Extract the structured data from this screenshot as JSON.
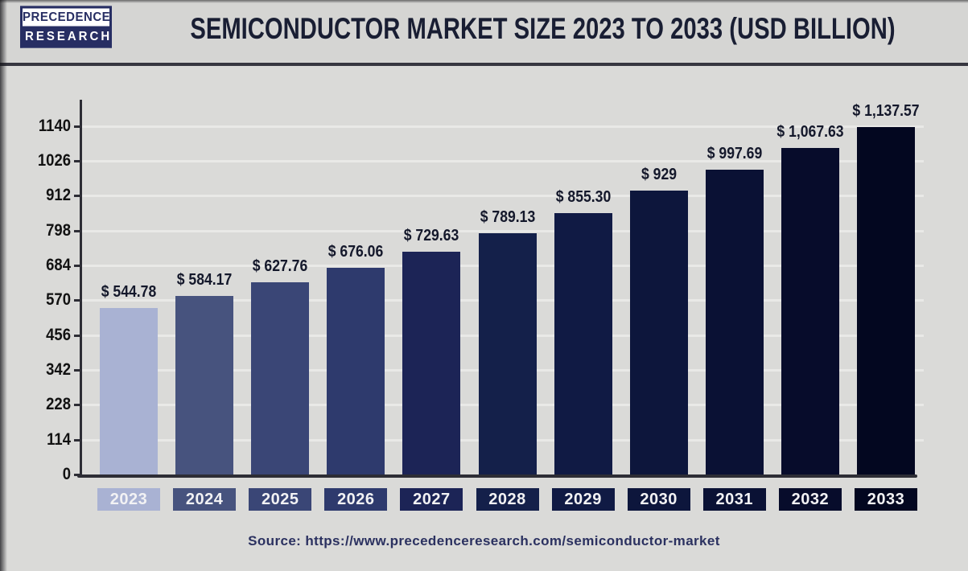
{
  "header": {
    "logo": {
      "line1": "PRECEDENCE",
      "line2": "RESEARCH"
    },
    "title": "SEMICONDUCTOR MARKET SIZE 2023 TO 2033 (USD BILLION)"
  },
  "chart_data": {
    "type": "bar",
    "title": "Semiconductor Market Size 2023 to 2033 (USD Billion)",
    "categories": [
      "2023",
      "2024",
      "2025",
      "2026",
      "2027",
      "2028",
      "2029",
      "2030",
      "2031",
      "2032",
      "2033"
    ],
    "values": [
      544.78,
      584.17,
      627.76,
      676.06,
      729.63,
      789.13,
      855.3,
      929,
      997.69,
      1067.63,
      1137.57
    ],
    "value_labels": [
      "$ 544.78",
      "$ 584.17",
      "$ 627.76",
      "$ 676.06",
      "$ 729.63",
      "$ 789.13",
      "$ 855.30",
      "$ 929",
      "$ 997.69",
      "$ 1,067.63",
      "$ 1,137.57"
    ],
    "bar_colors": [
      "#a9b2d3",
      "#47537e",
      "#3a4676",
      "#2e3a6d",
      "#1c2456",
      "#14204a",
      "#101a44",
      "#0d163c",
      "#0a1134",
      "#070c2b",
      "#030720"
    ],
    "y_ticks": [
      0,
      114,
      228,
      342,
      456,
      570,
      684,
      798,
      912,
      1026,
      1140
    ],
    "ylim": [
      0,
      1230
    ],
    "xlabel": "",
    "ylabel": "",
    "grid": "horizontal",
    "legend": "none",
    "axis_color": "#2d2d35",
    "gridline_color": "#e9e9e7"
  },
  "footer": {
    "source": "Source: https://www.precedenceresearch.com/semiconductor-market"
  }
}
